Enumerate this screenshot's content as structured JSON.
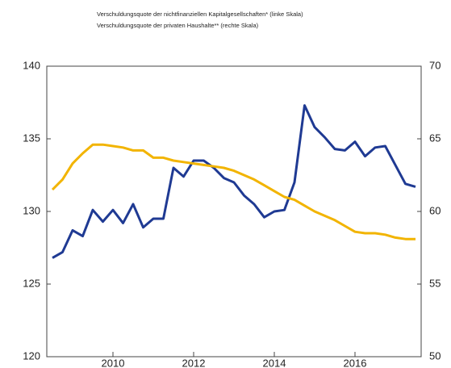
{
  "chart_data": {
    "type": "line",
    "legend": "top",
    "x": [
      2008.5,
      2008.75,
      2009,
      2009.25,
      2009.5,
      2009.75,
      2010,
      2010.25,
      2010.5,
      2010.75,
      2011,
      2011.25,
      2011.5,
      2011.75,
      2012,
      2012.25,
      2012.5,
      2012.75,
      2013,
      2013.25,
      2013.5,
      2013.75,
      2014,
      2014.25,
      2014.5,
      2014.75,
      2015,
      2015.25,
      2015.5,
      2015.75,
      2016,
      2016.25,
      2016.5,
      2016.75,
      2017,
      2017.25,
      2017.5
    ],
    "series": [
      {
        "name": "Verschuldungsquote der nichtfinanziellen Kapitalgesellschaften* (linke Skala)",
        "color": "#1f3a93",
        "values": [
          126.8,
          127.2,
          128.7,
          128.3,
          130.1,
          129.3,
          130.1,
          129.2,
          130.5,
          128.9,
          129.5,
          129.5,
          133.0,
          132.4,
          133.5,
          133.5,
          133.0,
          132.3,
          132.0,
          131.1,
          130.5,
          129.6,
          130.0,
          130.1,
          132.0,
          137.3,
          135.8,
          135.1,
          134.3,
          134.2,
          134.8,
          133.8,
          134.4,
          134.5,
          133.2,
          131.9,
          131.7
        ]
      },
      {
        "name": "Verschuldungsquote der privaten Haushalte** (rechte Skala)",
        "color": "#f2b400",
        "axis": "y2",
        "values": [
          61.5,
          62.2,
          63.3,
          64.0,
          64.6,
          64.6,
          64.5,
          64.4,
          64.2,
          64.2,
          63.7,
          63.7,
          63.5,
          63.4,
          63.3,
          63.2,
          63.1,
          63.0,
          62.8,
          62.5,
          62.2,
          61.8,
          61.4,
          61.0,
          60.8,
          60.4,
          60.0,
          59.7,
          59.4,
          59.0,
          58.6,
          58.5,
          58.5,
          58.4,
          58.2,
          58.1,
          58.1
        ]
      }
    ],
    "xlim": [
      2008.36,
      2017.64
    ],
    "xticks": [
      2010,
      2012,
      2014,
      2016
    ],
    "ylim": [
      120,
      140
    ],
    "yticks": [
      120,
      125,
      130,
      135,
      140
    ],
    "y2lim": [
      50,
      70
    ],
    "y2ticks": [
      50,
      55,
      60,
      65,
      70
    ]
  }
}
